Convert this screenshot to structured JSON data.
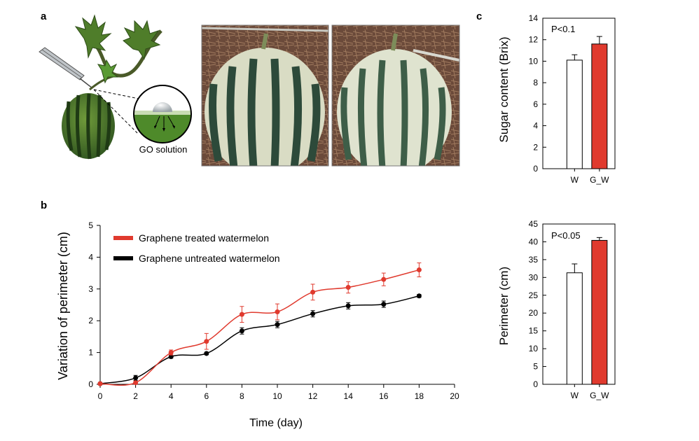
{
  "panels": {
    "a": {
      "letter": "a",
      "go_label": "GO solution"
    },
    "b": {
      "letter": "b"
    },
    "c": {
      "letter": "c"
    }
  },
  "colors": {
    "treated": "#e03a2e",
    "untreated": "#000000",
    "bar_w": "#ffffff",
    "bar_gw": "#e03a2e"
  },
  "chart_data": [
    {
      "id": "perimeter-growth",
      "type": "line",
      "xlabel": "Time  (day)",
      "ylabel": "Variation of perimeter (cm)",
      "xlim": [
        0,
        20
      ],
      "ylim": [
        0,
        5
      ],
      "xticks": [
        "0",
        "2",
        "4",
        "6",
        "8",
        "10",
        "12",
        "14",
        "16",
        "18",
        "20"
      ],
      "yticks": [
        "0",
        "1",
        "2",
        "3",
        "4",
        "5"
      ],
      "legend_position": "top-left",
      "series": [
        {
          "name": "Graphene treated watermelon",
          "color": "#e03a2e",
          "x": [
            0,
            2,
            4,
            6,
            8,
            10,
            12,
            14,
            16,
            18
          ],
          "y": [
            0.02,
            0.05,
            1.0,
            1.35,
            2.2,
            2.28,
            2.9,
            3.05,
            3.3,
            3.6
          ],
          "err": [
            0.02,
            0.04,
            0.08,
            0.25,
            0.25,
            0.25,
            0.25,
            0.18,
            0.2,
            0.22
          ]
        },
        {
          "name": "Graphene untreated watermelon",
          "color": "#000000",
          "x": [
            0,
            2,
            4,
            6,
            8,
            10,
            12,
            14,
            16,
            18
          ],
          "y": [
            0.02,
            0.2,
            0.87,
            0.97,
            1.68,
            1.88,
            2.22,
            2.47,
            2.52,
            2.78
          ],
          "err": [
            0.02,
            0.08,
            0.05,
            0.04,
            0.1,
            0.1,
            0.1,
            0.1,
            0.1,
            0.05
          ]
        }
      ]
    },
    {
      "id": "sugar-content",
      "type": "bar",
      "categories": [
        "W",
        "G_W"
      ],
      "values": [
        10.1,
        11.6
      ],
      "errors": [
        0.5,
        0.7
      ],
      "ylabel": "Sugar content (Brix)",
      "ylim": [
        0,
        14
      ],
      "yticks": [
        "0",
        "2",
        "4",
        "6",
        "8",
        "10",
        "12",
        "14"
      ],
      "annotation": "P<0.1"
    },
    {
      "id": "perimeter-bars",
      "type": "bar",
      "categories": [
        "W",
        "G_W"
      ],
      "values": [
        31.3,
        40.4
      ],
      "errors": [
        2.5,
        0.8
      ],
      "ylabel": "Perimeter (cm)",
      "ylim": [
        0,
        45
      ],
      "yticks": [
        "0",
        "5",
        "10",
        "15",
        "20",
        "25",
        "30",
        "35",
        "40",
        "45"
      ],
      "annotation": "P<0.05"
    }
  ]
}
